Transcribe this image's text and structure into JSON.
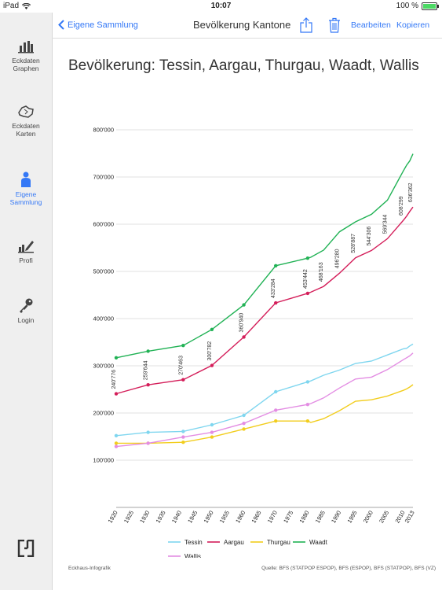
{
  "status": {
    "device": "iPad",
    "time": "10:07",
    "battery": "100 %"
  },
  "sidebar": {
    "items": [
      {
        "label1": "Eckdaten",
        "label2": "Graphen"
      },
      {
        "label1": "Eckdaten",
        "label2": "Karten"
      },
      {
        "label1": "Eigene",
        "label2": "Sammlung"
      },
      {
        "label1": "Profi",
        "label2": ""
      },
      {
        "label1": "Login",
        "label2": ""
      }
    ]
  },
  "toolbar": {
    "back_label": "Eigene Sammlung",
    "title": "Bevölkerung Kantone",
    "edit_label": "Bearbeiten",
    "copy_label": "Kopieren"
  },
  "footer": {
    "left": "Eckhaus-Infografik",
    "right": "Quelle: BFS (STATPOP ESPOP), BFS (ESPOP), BFS (STATPOP), BFS (VZ)"
  },
  "chart_data": {
    "type": "line",
    "title": "Bevölkerung: Tessin, Aargau, Thurgau, Waadt, Wallis",
    "xlabel": "",
    "ylabel": "",
    "ylim": [
      0,
      800000
    ],
    "xlim": [
      1920,
      2013
    ],
    "yticks": [
      "100'000",
      "200'000",
      "300'000",
      "400'000",
      "500'000",
      "600'000",
      "700'000",
      "800'000"
    ],
    "xticks": [
      "1920",
      "1925",
      "1930",
      "1935",
      "1940",
      "1945",
      "1950",
      "1955",
      "1960",
      "1965",
      "1970",
      "1975",
      "1980",
      "1985",
      "1990",
      "1995",
      "2000",
      "2005",
      "2010",
      "2013"
    ],
    "legend_position": "bottom",
    "series": [
      {
        "name": "Tessin",
        "color": "#7fd6ef",
        "x": [
          1920,
          1930,
          1941,
          1950,
          1960,
          1970,
          1980,
          1981,
          1985,
          1990,
          1995,
          2000,
          2005,
          2010,
          2011,
          2012,
          2013
        ],
        "y": [
          152000,
          159000,
          161000,
          175000,
          195000,
          245000,
          266000,
          268000,
          280000,
          291000,
          305000,
          310000,
          323000,
          336000,
          337000,
          342000,
          346000
        ],
        "markers": [
          1920,
          1930,
          1941,
          1950,
          1960,
          1970,
          1980
        ]
      },
      {
        "name": "Aargau",
        "color": "#d41e5a",
        "x": [
          1920,
          1930,
          1941,
          1950,
          1960,
          1970,
          1980,
          1981,
          1985,
          1990,
          1995,
          2000,
          2005,
          2010,
          2011,
          2012,
          2013
        ],
        "y": [
          240776,
          259644,
          270463,
          300782,
          360940,
          433284,
          453442,
          456000,
          468163,
          496280,
          528887,
          544306,
          569344,
          608299,
          617000,
          627000,
          636362
        ],
        "markers": [
          1920,
          1930,
          1941,
          1950,
          1960,
          1970,
          1980
        ],
        "labels": [
          {
            "x": 1920,
            "text": "240'776"
          },
          {
            "x": 1930,
            "text": "259'644"
          },
          {
            "x": 1941,
            "text": "270'463"
          },
          {
            "x": 1950,
            "text": "300'782"
          },
          {
            "x": 1960,
            "text": "360'940"
          },
          {
            "x": 1970,
            "text": "433'284"
          },
          {
            "x": 1980,
            "text": "453'442"
          },
          {
            "x": 1985,
            "text": "468'163"
          },
          {
            "x": 1990,
            "text": "496'280"
          },
          {
            "x": 1995,
            "text": "528'887"
          },
          {
            "x": 2000,
            "text": "544'306"
          },
          {
            "x": 2005,
            "text": "569'344"
          },
          {
            "x": 2010,
            "text": "608'299"
          },
          {
            "x": 2013,
            "text": "636'362"
          }
        ]
      },
      {
        "name": "Thurgau",
        "color": "#f2cd1d",
        "x": [
          1920,
          1930,
          1941,
          1950,
          1960,
          1970,
          1980,
          1981,
          1985,
          1990,
          1995,
          2000,
          2005,
          2010,
          2011,
          2012,
          2013
        ],
        "y": [
          136000,
          136000,
          138000,
          149000,
          166000,
          183000,
          183000,
          180000,
          188000,
          205000,
          225000,
          228000,
          236000,
          248000,
          251000,
          255000,
          260000
        ],
        "markers": [
          1920,
          1930,
          1941,
          1950,
          1960,
          1970,
          1980
        ]
      },
      {
        "name": "Waadt",
        "color": "#21b255",
        "x": [
          1920,
          1930,
          1941,
          1950,
          1960,
          1970,
          1980,
          1981,
          1985,
          1990,
          1995,
          2000,
          2005,
          2010,
          2011,
          2012,
          2013
        ],
        "y": [
          317000,
          331000,
          343000,
          377000,
          429000,
          512000,
          528000,
          530000,
          545000,
          584000,
          605000,
          621000,
          651000,
          713000,
          725000,
          734000,
          749000
        ],
        "markers": [
          1920,
          1930,
          1941,
          1950,
          1960,
          1970,
          1980
        ]
      },
      {
        "name": "Wallis",
        "color": "#e38de3",
        "x": [
          1920,
          1930,
          1941,
          1950,
          1960,
          1970,
          1980,
          1981,
          1985,
          1990,
          1995,
          2000,
          2005,
          2010,
          2011,
          2012,
          2013
        ],
        "y": [
          129000,
          136000,
          149000,
          159000,
          178000,
          206000,
          218000,
          220000,
          232000,
          253000,
          272000,
          276000,
          292000,
          313000,
          317000,
          321000,
          327000
        ],
        "markers": [
          1920,
          1930,
          1941,
          1950,
          1960,
          1970,
          1980
        ]
      }
    ]
  }
}
